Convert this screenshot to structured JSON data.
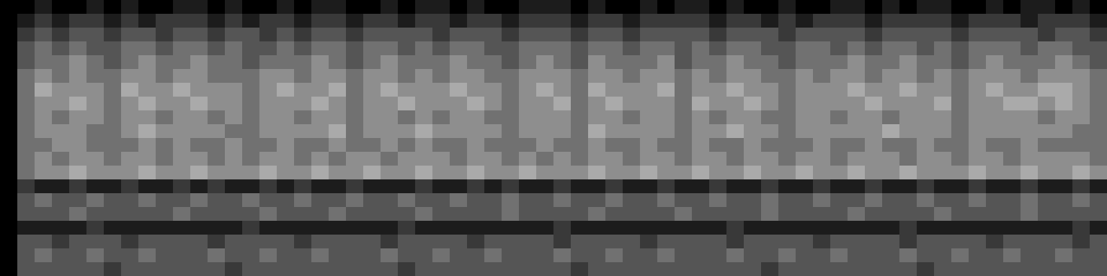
{
  "chart_data": {
    "type": "heatmap",
    "tick_labels": false,
    "zlim": [
      0,
      9
    ],
    "values": [
      [
        0,
        0,
        1,
        0,
        0,
        1,
        0,
        1,
        0,
        0,
        1,
        1,
        0,
        1,
        0,
        0,
        1,
        0,
        1,
        1,
        0,
        0,
        1,
        0,
        1,
        1,
        0,
        1,
        0,
        0,
        1,
        1,
        1,
        0,
        1,
        0,
        0,
        1,
        0,
        1,
        1,
        0,
        1,
        0,
        0,
        1,
        0,
        0,
        1,
        1,
        0,
        1,
        0,
        1,
        1,
        0,
        0,
        1,
        0,
        1,
        1,
        0,
        1,
        0
      ],
      [
        0,
        1,
        2,
        1,
        2,
        2,
        1,
        2,
        1,
        2,
        2,
        2,
        1,
        2,
        1,
        2,
        2,
        1,
        2,
        2,
        1,
        2,
        2,
        1,
        2,
        2,
        1,
        2,
        2,
        1,
        2,
        2,
        2,
        1,
        2,
        2,
        1,
        2,
        2,
        2,
        2,
        1,
        2,
        2,
        1,
        2,
        1,
        2,
        2,
        2,
        1,
        2,
        2,
        2,
        2,
        1,
        2,
        2,
        2,
        1,
        2,
        2,
        2,
        1
      ],
      [
        0,
        2,
        3,
        2,
        3,
        3,
        2,
        3,
        3,
        2,
        3,
        3,
        2,
        3,
        3,
        2,
        3,
        2,
        3,
        3,
        2,
        3,
        3,
        3,
        3,
        2,
        3,
        3,
        3,
        2,
        3,
        3,
        3,
        2,
        3,
        3,
        2,
        3,
        3,
        3,
        3,
        2,
        3,
        3,
        3,
        2,
        3,
        3,
        3,
        3,
        2,
        3,
        3,
        3,
        3,
        2,
        3,
        3,
        3,
        3,
        2,
        3,
        3,
        2
      ],
      [
        0,
        3,
        4,
        3,
        4,
        3,
        3,
        4,
        4,
        3,
        4,
        4,
        3,
        4,
        3,
        3,
        4,
        3,
        4,
        4,
        3,
        4,
        4,
        3,
        4,
        3,
        4,
        4,
        3,
        3,
        4,
        4,
        4,
        3,
        4,
        4,
        3,
        4,
        4,
        3,
        4,
        3,
        4,
        4,
        3,
        3,
        4,
        4,
        3,
        4,
        3,
        4,
        4,
        3,
        4,
        3,
        4,
        4,
        4,
        3,
        4,
        4,
        3,
        3
      ],
      [
        0,
        3,
        4,
        4,
        5,
        4,
        3,
        4,
        5,
        4,
        4,
        5,
        4,
        4,
        3,
        4,
        4,
        4,
        5,
        4,
        3,
        4,
        5,
        4,
        4,
        4,
        5,
        4,
        4,
        3,
        4,
        5,
        4,
        3,
        5,
        4,
        4,
        4,
        5,
        3,
        4,
        4,
        5,
        4,
        4,
        3,
        4,
        4,
        4,
        5,
        4,
        4,
        5,
        4,
        4,
        3,
        4,
        5,
        4,
        4,
        4,
        5,
        4,
        3
      ],
      [
        0,
        4,
        5,
        4,
        5,
        4,
        4,
        5,
        5,
        4,
        5,
        5,
        4,
        4,
        4,
        5,
        5,
        4,
        5,
        5,
        4,
        5,
        5,
        4,
        5,
        4,
        5,
        5,
        4,
        4,
        5,
        5,
        5,
        4,
        5,
        5,
        4,
        5,
        5,
        4,
        5,
        4,
        5,
        5,
        4,
        4,
        5,
        4,
        5,
        5,
        4,
        5,
        5,
        4,
        5,
        4,
        5,
        5,
        5,
        4,
        5,
        5,
        5,
        4
      ],
      [
        0,
        4,
        6,
        5,
        5,
        5,
        4,
        6,
        5,
        5,
        6,
        5,
        5,
        5,
        4,
        5,
        6,
        5,
        5,
        6,
        4,
        5,
        6,
        5,
        5,
        5,
        6,
        5,
        5,
        4,
        5,
        6,
        5,
        4,
        6,
        5,
        5,
        5,
        6,
        4,
        5,
        5,
        6,
        5,
        5,
        4,
        5,
        5,
        5,
        6,
        5,
        5,
        6,
        5,
        5,
        4,
        5,
        6,
        5,
        5,
        6,
        6,
        5,
        4
      ],
      [
        0,
        4,
        5,
        5,
        6,
        5,
        4,
        5,
        6,
        5,
        5,
        6,
        5,
        5,
        4,
        5,
        5,
        5,
        6,
        5,
        4,
        5,
        5,
        6,
        5,
        5,
        5,
        6,
        5,
        4,
        5,
        5,
        6,
        4,
        5,
        6,
        5,
        5,
        5,
        4,
        6,
        5,
        5,
        6,
        5,
        4,
        5,
        5,
        5,
        5,
        6,
        5,
        5,
        5,
        6,
        4,
        5,
        5,
        6,
        6,
        5,
        6,
        5,
        4
      ],
      [
        0,
        4,
        5,
        4,
        5,
        5,
        4,
        5,
        5,
        4,
        5,
        5,
        4,
        5,
        4,
        5,
        5,
        4,
        5,
        5,
        4,
        5,
        5,
        4,
        5,
        4,
        5,
        5,
        4,
        4,
        5,
        5,
        5,
        4,
        5,
        5,
        4,
        5,
        5,
        4,
        5,
        4,
        5,
        5,
        4,
        4,
        5,
        5,
        4,
        5,
        5,
        4,
        5,
        5,
        5,
        4,
        5,
        5,
        5,
        5,
        4,
        5,
        5,
        4
      ],
      [
        0,
        4,
        5,
        5,
        5,
        4,
        4,
        5,
        6,
        5,
        5,
        5,
        5,
        4,
        4,
        5,
        5,
        5,
        5,
        6,
        4,
        5,
        5,
        5,
        6,
        5,
        5,
        5,
        5,
        4,
        5,
        5,
        5,
        4,
        6,
        5,
        5,
        5,
        5,
        4,
        5,
        5,
        6,
        5,
        5,
        4,
        5,
        5,
        5,
        5,
        5,
        6,
        5,
        5,
        5,
        4,
        5,
        5,
        5,
        5,
        5,
        5,
        4,
        4
      ],
      [
        0,
        4,
        4,
        5,
        5,
        4,
        4,
        4,
        5,
        4,
        5,
        4,
        4,
        5,
        4,
        4,
        5,
        4,
        4,
        5,
        4,
        4,
        5,
        4,
        5,
        4,
        4,
        5,
        4,
        4,
        4,
        5,
        4,
        4,
        5,
        4,
        4,
        5,
        4,
        4,
        5,
        4,
        4,
        5,
        4,
        4,
        4,
        5,
        4,
        4,
        5,
        4,
        4,
        5,
        4,
        4,
        5,
        4,
        4,
        5,
        4,
        4,
        4,
        4
      ],
      [
        0,
        4,
        5,
        4,
        5,
        5,
        4,
        5,
        5,
        4,
        5,
        5,
        4,
        5,
        4,
        5,
        5,
        4,
        5,
        4,
        5,
        5,
        4,
        5,
        5,
        5,
        4,
        5,
        5,
        4,
        5,
        4,
        5,
        4,
        5,
        5,
        4,
        5,
        5,
        4,
        5,
        5,
        4,
        5,
        5,
        4,
        5,
        5,
        4,
        5,
        5,
        5,
        4,
        5,
        5,
        4,
        5,
        5,
        4,
        5,
        5,
        5,
        5,
        4
      ],
      [
        0,
        4,
        5,
        5,
        6,
        5,
        5,
        5,
        6,
        5,
        5,
        6,
        5,
        5,
        5,
        6,
        5,
        5,
        6,
        5,
        5,
        6,
        5,
        5,
        6,
        5,
        5,
        6,
        5,
        5,
        6,
        5,
        5,
        5,
        6,
        5,
        5,
        6,
        5,
        5,
        6,
        5,
        5,
        6,
        5,
        5,
        6,
        5,
        5,
        6,
        5,
        5,
        6,
        5,
        5,
        5,
        6,
        5,
        5,
        6,
        5,
        5,
        6,
        5
      ],
      [
        0,
        2,
        1,
        1,
        2,
        1,
        1,
        2,
        1,
        1,
        2,
        1,
        2,
        1,
        1,
        2,
        1,
        2,
        1,
        1,
        2,
        1,
        1,
        1,
        2,
        1,
        1,
        2,
        1,
        2,
        1,
        1,
        2,
        1,
        1,
        2,
        1,
        1,
        2,
        1,
        1,
        2,
        1,
        1,
        2,
        1,
        1,
        2,
        1,
        1,
        2,
        1,
        1,
        2,
        1,
        1,
        2,
        1,
        1,
        2,
        1,
        1,
        2,
        1
      ],
      [
        0,
        3,
        4,
        3,
        3,
        4,
        3,
        3,
        4,
        3,
        3,
        4,
        3,
        3,
        4,
        3,
        3,
        4,
        3,
        3,
        4,
        3,
        3,
        4,
        3,
        3,
        4,
        3,
        3,
        4,
        3,
        3,
        4,
        3,
        3,
        4,
        3,
        3,
        4,
        3,
        3,
        4,
        3,
        3,
        4,
        3,
        3,
        4,
        3,
        3,
        4,
        3,
        3,
        4,
        3,
        3,
        4,
        3,
        3,
        4,
        3,
        3,
        4,
        3
      ],
      [
        0,
        3,
        3,
        3,
        4,
        3,
        3,
        3,
        3,
        3,
        4,
        3,
        3,
        3,
        3,
        4,
        3,
        3,
        3,
        4,
        3,
        3,
        3,
        3,
        4,
        3,
        3,
        3,
        3,
        4,
        3,
        3,
        3,
        3,
        4,
        3,
        3,
        3,
        3,
        4,
        3,
        3,
        3,
        3,
        4,
        3,
        3,
        3,
        3,
        4,
        3,
        3,
        3,
        3,
        4,
        3,
        3,
        3,
        3,
        4,
        3,
        3,
        3,
        3
      ],
      [
        0,
        1,
        1,
        1,
        1,
        2,
        1,
        1,
        1,
        1,
        1,
        1,
        1,
        1,
        2,
        1,
        1,
        1,
        1,
        1,
        1,
        1,
        1,
        2,
        1,
        1,
        1,
        1,
        1,
        1,
        1,
        1,
        2,
        1,
        1,
        1,
        1,
        1,
        1,
        1,
        1,
        1,
        2,
        1,
        1,
        1,
        1,
        1,
        1,
        1,
        1,
        1,
        2,
        1,
        1,
        1,
        1,
        1,
        1,
        1,
        1,
        1,
        2,
        1
      ],
      [
        0,
        3,
        3,
        2,
        3,
        3,
        3,
        2,
        3,
        3,
        3,
        3,
        2,
        3,
        3,
        3,
        3,
        2,
        3,
        3,
        3,
        3,
        2,
        3,
        3,
        3,
        3,
        2,
        3,
        3,
        3,
        3,
        2,
        3,
        3,
        3,
        3,
        2,
        3,
        3,
        3,
        3,
        2,
        3,
        3,
        3,
        3,
        2,
        3,
        3,
        3,
        3,
        2,
        3,
        3,
        3,
        3,
        2,
        3,
        3,
        3,
        3,
        2,
        3
      ],
      [
        0,
        3,
        4,
        3,
        3,
        4,
        3,
        3,
        4,
        3,
        3,
        3,
        4,
        3,
        3,
        4,
        3,
        3,
        4,
        3,
        3,
        3,
        4,
        3,
        3,
        4,
        3,
        3,
        4,
        3,
        3,
        3,
        4,
        3,
        3,
        4,
        3,
        3,
        4,
        3,
        3,
        3,
        4,
        3,
        3,
        4,
        3,
        3,
        4,
        3,
        3,
        3,
        4,
        3,
        3,
        4,
        3,
        3,
        4,
        3,
        3,
        4,
        3,
        3
      ],
      [
        0,
        3,
        3,
        3,
        3,
        3,
        2,
        3,
        3,
        3,
        3,
        3,
        3,
        2,
        3,
        3,
        3,
        3,
        3,
        3,
        3,
        3,
        3,
        2,
        3,
        3,
        3,
        3,
        3,
        3,
        3,
        3,
        3,
        2,
        3,
        3,
        3,
        3,
        3,
        3,
        3,
        3,
        3,
        3,
        2,
        3,
        3,
        3,
        3,
        3,
        3,
        3,
        3,
        2,
        3,
        3,
        3,
        3,
        3,
        3,
        3,
        3,
        3,
        3
      ]
    ]
  }
}
